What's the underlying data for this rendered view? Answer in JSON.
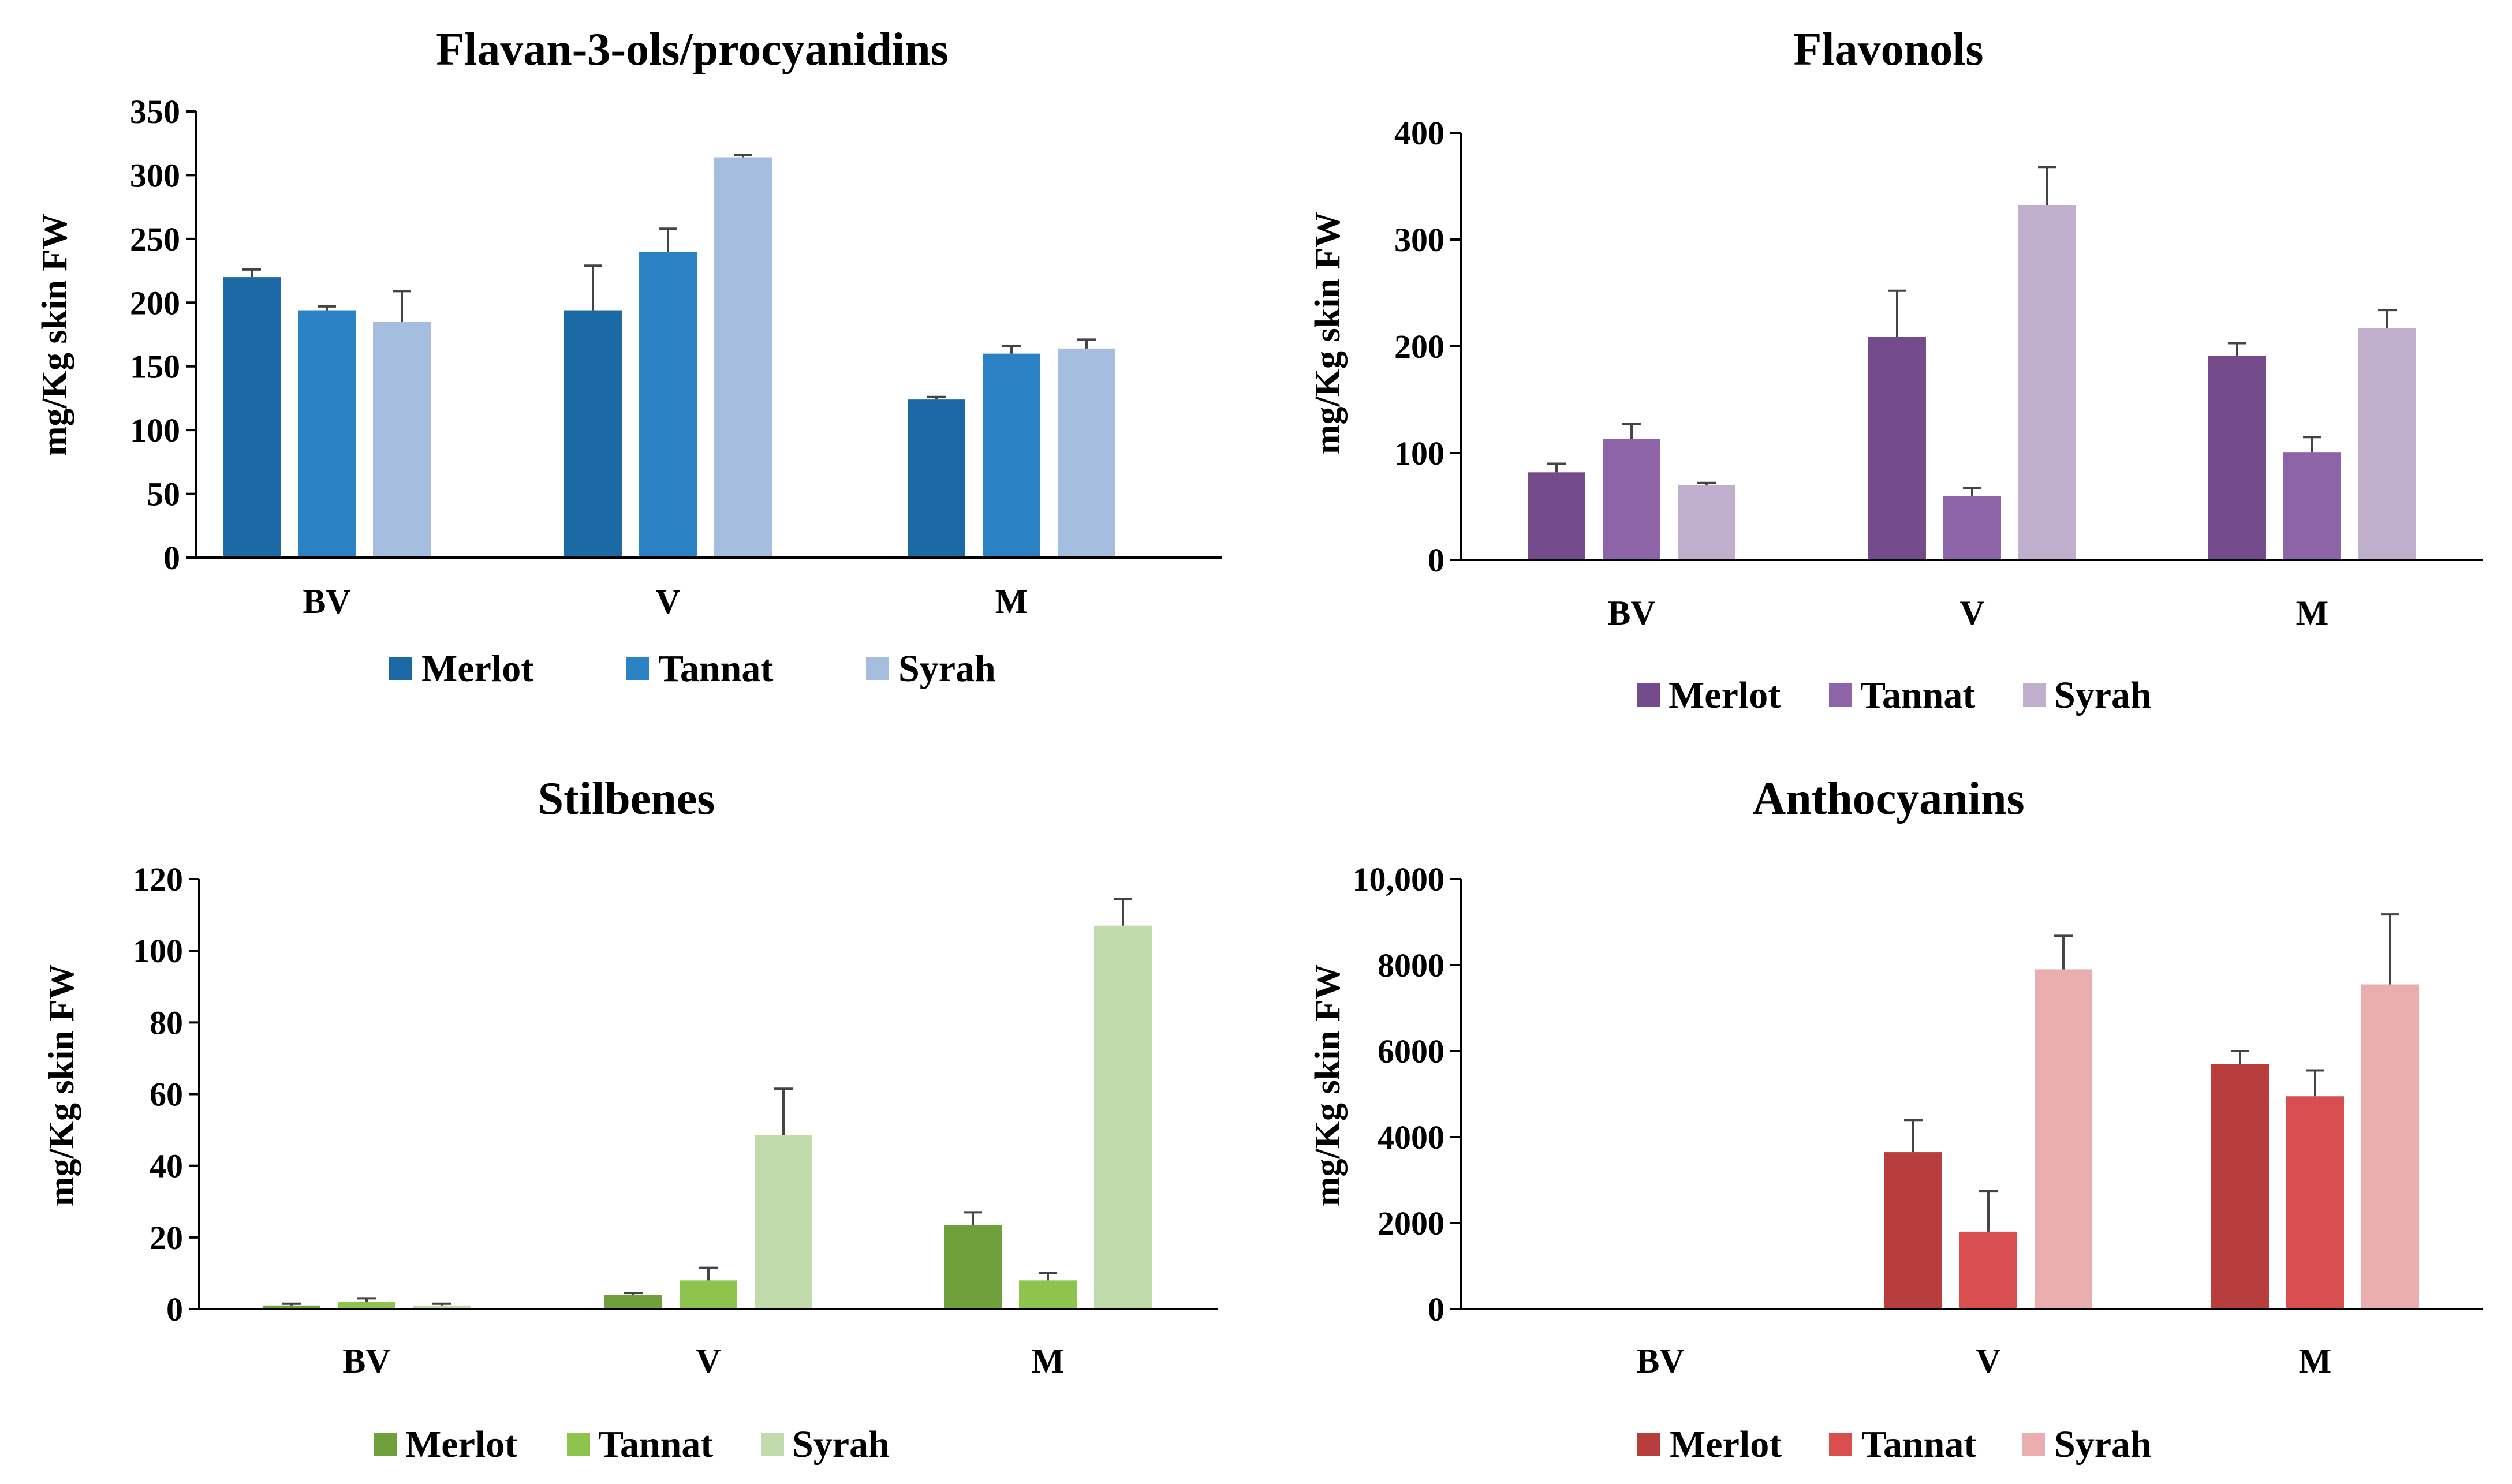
{
  "chart_data": [
    {
      "type": "bar",
      "title": "Flavan-3-ols/procyanidins",
      "xlabel": "",
      "ylabel": "mg/Kg skin FW",
      "categories": [
        "BV",
        "V",
        "M"
      ],
      "ylim": [
        0,
        350
      ],
      "yticks": [
        "0",
        "50",
        "100",
        "150",
        "200",
        "250",
        "300",
        "350"
      ],
      "series": [
        {
          "name": "Merlot",
          "color": "#1b6aa5",
          "values": [
            220,
            194,
            124
          ],
          "errors": [
            6,
            35,
            2
          ]
        },
        {
          "name": "Tannat",
          "color": "#2a82c5",
          "values": [
            194,
            240,
            160
          ],
          "errors": [
            3,
            18,
            6
          ]
        },
        {
          "name": "Syrah",
          "color": "#a5bedf",
          "values": [
            185,
            314,
            164
          ],
          "errors": [
            24,
            2,
            7
          ]
        }
      ]
    },
    {
      "type": "bar",
      "title": "Flavonols",
      "xlabel": "",
      "ylabel": "mg/Kg skin FW",
      "categories": [
        "BV",
        "V",
        "M"
      ],
      "ylim": [
        0,
        400
      ],
      "yticks": [
        "0",
        "100",
        "200",
        "300",
        "400"
      ],
      "series": [
        {
          "name": "Merlot",
          "color": "#744c8c",
          "values": [
            82,
            209,
            191
          ],
          "errors": [
            8,
            43,
            12
          ]
        },
        {
          "name": "Tannat",
          "color": "#8e64a8",
          "values": [
            113,
            60,
            101
          ],
          "errors": [
            14,
            7,
            14
          ]
        },
        {
          "name": "Syrah",
          "color": "#c0aecd",
          "values": [
            70,
            332,
            217
          ],
          "errors": [
            2,
            36,
            17
          ]
        }
      ]
    },
    {
      "type": "bar",
      "title": "Stilbenes",
      "xlabel": "",
      "ylabel": "mg/Kg skin FW",
      "categories": [
        "BV",
        "V",
        "M"
      ],
      "ylim": [
        0,
        120
      ],
      "yticks": [
        "0",
        "20",
        "40",
        "60",
        "80",
        "100",
        "120"
      ],
      "series": [
        {
          "name": "Merlot",
          "color": "#70a03c",
          "values": [
            1,
            4,
            23.5
          ],
          "errors": [
            0.5,
            0.5,
            3.5
          ]
        },
        {
          "name": "Tannat",
          "color": "#8ec34e",
          "values": [
            2,
            8,
            8
          ],
          "errors": [
            1,
            3.5,
            2
          ]
        },
        {
          "name": "Syrah",
          "color": "#c2dbad",
          "values": [
            1,
            48.5,
            107
          ],
          "errors": [
            0.5,
            13,
            7.5
          ]
        }
      ]
    },
    {
      "type": "bar",
      "title": "Anthocyanins",
      "xlabel": "",
      "ylabel": "mg/Kg skin FW",
      "categories": [
        "BV",
        "V",
        "M"
      ],
      "ylim": [
        0,
        10000
      ],
      "yticks": [
        "0",
        "2000",
        "4000",
        "6000",
        "8000",
        "10,000"
      ],
      "series": [
        {
          "name": "Merlot",
          "color": "#b83e3e",
          "values": [
            0,
            3650,
            5700
          ],
          "errors": [
            0,
            750,
            300
          ]
        },
        {
          "name": "Tannat",
          "color": "#d94e4e",
          "values": [
            0,
            1800,
            4950
          ],
          "errors": [
            0,
            950,
            600
          ]
        },
        {
          "name": "Syrah",
          "color": "#eaaeae",
          "values": [
            0,
            7900,
            7550
          ],
          "errors": [
            0,
            780,
            1630
          ]
        }
      ]
    }
  ]
}
